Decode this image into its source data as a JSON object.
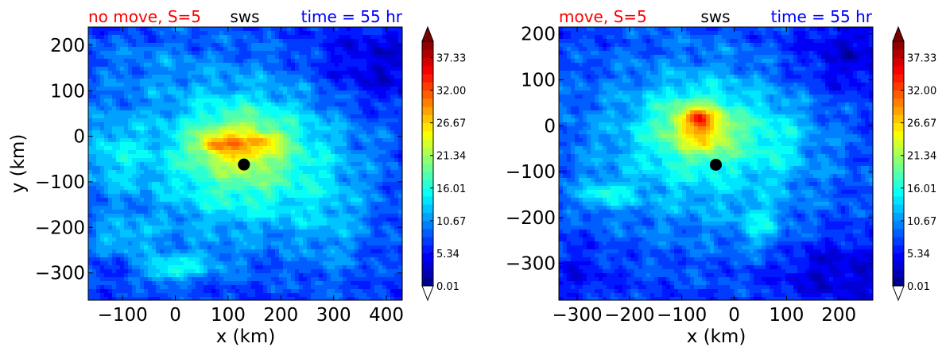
{
  "colormap": [
    "#00007f",
    "#0000ff",
    "#007fff",
    "#00ffff",
    "#7fff7f",
    "#ffff00",
    "#ff7f00",
    "#ff0000",
    "#7f0000"
  ],
  "chart_data": [
    {
      "type": "heatmap",
      "title_left": "no move, S=5",
      "title_center": "sws",
      "title_right": "time = 55 hr",
      "title_left_color": "#ff0000",
      "title_center_color": "#000000",
      "title_right_color": "#0000ff",
      "xlabel": "x (km)",
      "ylabel": "y (km)",
      "xlim": [
        -165,
        430
      ],
      "ylim": [
        -360,
        240
      ],
      "xticks": [
        -100,
        0,
        100,
        200,
        300,
        400
      ],
      "xtick_labels": [
        "−100",
        "0",
        "100",
        "200",
        "300",
        "400"
      ],
      "yticks": [
        200,
        100,
        0,
        -100,
        -200,
        -300
      ],
      "ytick_labels": [
        "200",
        "100",
        "0",
        "−100",
        "−200",
        "−300"
      ],
      "colorbar": {
        "ticks": [
          37.33,
          32.0,
          26.67,
          21.34,
          16.01,
          10.67,
          5.34,
          0.01
        ],
        "tick_labels": [
          "37.33",
          "32.00",
          "26.67",
          "21.34",
          "16.01",
          "10.67",
          "5.34",
          "0.01"
        ],
        "vmin": 0.01,
        "vmax": 40.0,
        "levels": 30,
        "extend": "both"
      },
      "center_marker": {
        "x": 130,
        "y": -62
      },
      "background_value": 7,
      "features": [
        {
          "x": 130,
          "y": -40,
          "sx": 220,
          "sy": 180,
          "v": 8
        },
        {
          "x": 130,
          "y": -55,
          "sx": 140,
          "sy": 130,
          "v": 5
        },
        {
          "x": 120,
          "y": -10,
          "sx": 80,
          "sy": 55,
          "v": 6
        },
        {
          "x": 75,
          "y": -20,
          "sx": 35,
          "sy": 20,
          "v": 7
        },
        {
          "x": 170,
          "y": -10,
          "sx": 30,
          "sy": 15,
          "v": 4
        },
        {
          "x": 135,
          "y": -35,
          "sx": 40,
          "sy": 25,
          "v": 3
        },
        {
          "x": -120,
          "y": -40,
          "sx": 60,
          "sy": 90,
          "v": 5
        },
        {
          "x": -100,
          "y": -220,
          "sx": 70,
          "sy": 40,
          "v": 5
        },
        {
          "x": 20,
          "y": -280,
          "sx": 80,
          "sy": 35,
          "v": 5
        },
        {
          "x": -20,
          "y": -300,
          "sx": 40,
          "sy": 25,
          "v": 5
        },
        {
          "x": 300,
          "y": -200,
          "sx": 70,
          "sy": 120,
          "v": 3
        },
        {
          "x": 380,
          "y": 150,
          "sx": 120,
          "sy": 90,
          "v": -4
        },
        {
          "x": -60,
          "y": 160,
          "sx": 140,
          "sy": 70,
          "v": 2
        }
      ]
    },
    {
      "type": "heatmap",
      "title_left": "move, S=5",
      "title_center": "sws",
      "title_right": "time = 55 hr",
      "title_left_color": "#ff0000",
      "title_center_color": "#000000",
      "title_right_color": "#0000ff",
      "xlabel": "x (km)",
      "ylabel": "",
      "xlim": [
        -335,
        265
      ],
      "ylim": [
        -380,
        215
      ],
      "xticks": [
        -300,
        -200,
        -100,
        0,
        100,
        200
      ],
      "xtick_labels": [
        "−300",
        "−200",
        "−100",
        "0",
        "100",
        "200"
      ],
      "yticks": [
        200,
        100,
        0,
        -100,
        -200,
        -300
      ],
      "ytick_labels": [
        "200",
        "100",
        "0",
        "−100",
        "−200",
        "−300"
      ],
      "colorbar": {
        "ticks": [
          37.33,
          32.0,
          26.67,
          21.34,
          16.01,
          10.67,
          5.34,
          0.01
        ],
        "tick_labels": [
          "37.33",
          "32.00",
          "26.67",
          "21.34",
          "16.01",
          "10.67",
          "5.34",
          "0.01"
        ],
        "vmin": 0.01,
        "vmax": 40.0,
        "levels": 30,
        "extend": "both"
      },
      "center_marker": {
        "x": -35,
        "y": -85
      },
      "background_value": 7,
      "features": [
        {
          "x": -60,
          "y": -40,
          "sx": 230,
          "sy": 190,
          "v": 8
        },
        {
          "x": -70,
          "y": 0,
          "sx": 80,
          "sy": 70,
          "v": 9
        },
        {
          "x": -70,
          "y": 15,
          "sx": 30,
          "sy": 20,
          "v": 9
        },
        {
          "x": -50,
          "y": -20,
          "sx": 45,
          "sy": 45,
          "v": 4
        },
        {
          "x": -250,
          "y": -150,
          "sx": 50,
          "sy": 30,
          "v": 6
        },
        {
          "x": 50,
          "y": -220,
          "sx": 40,
          "sy": 50,
          "v": 5
        },
        {
          "x": 80,
          "y": -30,
          "sx": 60,
          "sy": 80,
          "v": 3
        },
        {
          "x": 220,
          "y": 150,
          "sx": 120,
          "sy": 90,
          "v": -4
        },
        {
          "x": 200,
          "y": -320,
          "sx": 120,
          "sy": 70,
          "v": -4
        },
        {
          "x": -300,
          "y": -320,
          "sx": 70,
          "sy": 60,
          "v": -2
        }
      ]
    }
  ]
}
